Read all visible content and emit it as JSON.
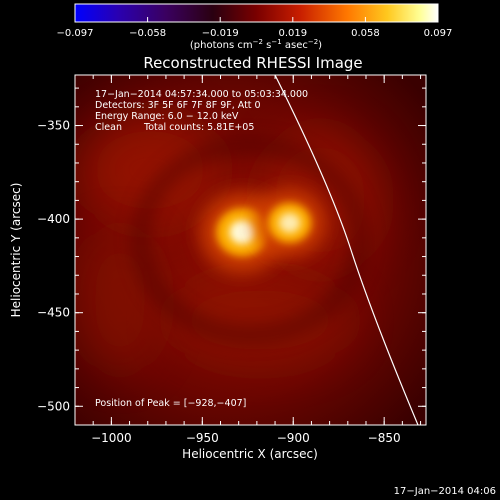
{
  "colorbar": {
    "tick_labels": [
      "−0.097",
      "−0.058",
      "−0.019",
      "0.019",
      "0.058",
      "0.097"
    ],
    "units": "(photons cm",
    "units_exp1": "−2",
    "units_mid": " s",
    "units_exp2": "−1",
    "units_end": " asec",
    "units_exp3": "−2",
    "units_close": ")",
    "range": [
      -0.097,
      0.097
    ],
    "gradient_colors": [
      "#0000ff",
      "#2a00b0",
      "#3a0060",
      "#2a0010",
      "#7a0000",
      "#c81e00",
      "#ff7800",
      "#ffc81e",
      "#ffff96",
      "#ffffff"
    ]
  },
  "plot": {
    "title": "Reconstructed RHESSI Image",
    "xlabel": "Heliocentric X (arcsec)",
    "ylabel": "Heliocentric Y (arcsec)",
    "x_ticks": [
      {
        "value": -1000,
        "label": "−1000"
      },
      {
        "value": -950,
        "label": "−950"
      },
      {
        "value": -900,
        "label": "−900"
      },
      {
        "value": -850,
        "label": "−850"
      }
    ],
    "y_ticks": [
      {
        "value": -350,
        "label": "−350"
      },
      {
        "value": -400,
        "label": "−400"
      },
      {
        "value": -450,
        "label": "−450"
      },
      {
        "value": -500,
        "label": "−500"
      }
    ],
    "xlim": [
      -1020,
      -827
    ],
    "ylim": [
      -510,
      -323
    ]
  },
  "annotations": {
    "time_range": "17−Jan−2014 04:57:34.000 to 05:03:34.000",
    "detectors": "Detectors: 3F 5F 6F 7F 8F 9F, Att 0",
    "energy": "Energy Range: 6.0 − 12.0 keV",
    "clean": "Clean",
    "total_counts": "Total counts: 5.81E+05",
    "peak": "Position of Peak = [−928,−407]"
  },
  "footer": {
    "timestamp": "17−Jan−2014 04:06"
  },
  "image_data": {
    "peak_position": [
      -928,
      -407
    ],
    "sources": [
      {
        "x": -928,
        "y": -407,
        "intensity": 1.0
      },
      {
        "x": -902,
        "y": -402,
        "intensity": 0.8
      }
    ],
    "colors": {
      "background": "#7a0a00",
      "source_glow": "#ffb400",
      "source_core": "#ffffe6",
      "limb": "#ffffff"
    }
  }
}
